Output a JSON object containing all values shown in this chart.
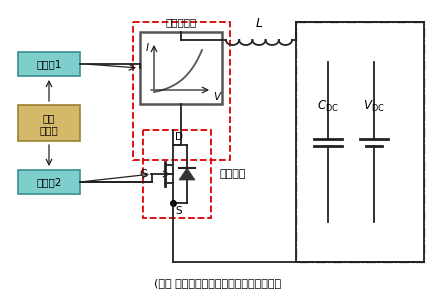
{
  "title": "(ｂ） 基于非线性元件的无损短路测试方法",
  "label_nonlinear": "非线性元件",
  "label_driver1": "驱动器1",
  "label_driver2": "驱动器2",
  "label_pulse_line1": "脉冲",
  "label_pulse_line2": "发生器",
  "label_dut": "待测对象",
  "label_L": "L",
  "label_D": "D",
  "label_G": "G",
  "label_S": "S",
  "label_I": "I",
  "label_V": "V",
  "bg_color": "#ffffff",
  "driver_box_fc": "#7ecece",
  "driver_box_ec": "#3a9090",
  "pulse_box_fc": "#d4b96a",
  "pulse_box_ec": "#9a8030",
  "nl_box_ec": "#555555",
  "red_dash_color": "#dd0000",
  "line_color": "#222222",
  "outer_box_color": "#666666"
}
